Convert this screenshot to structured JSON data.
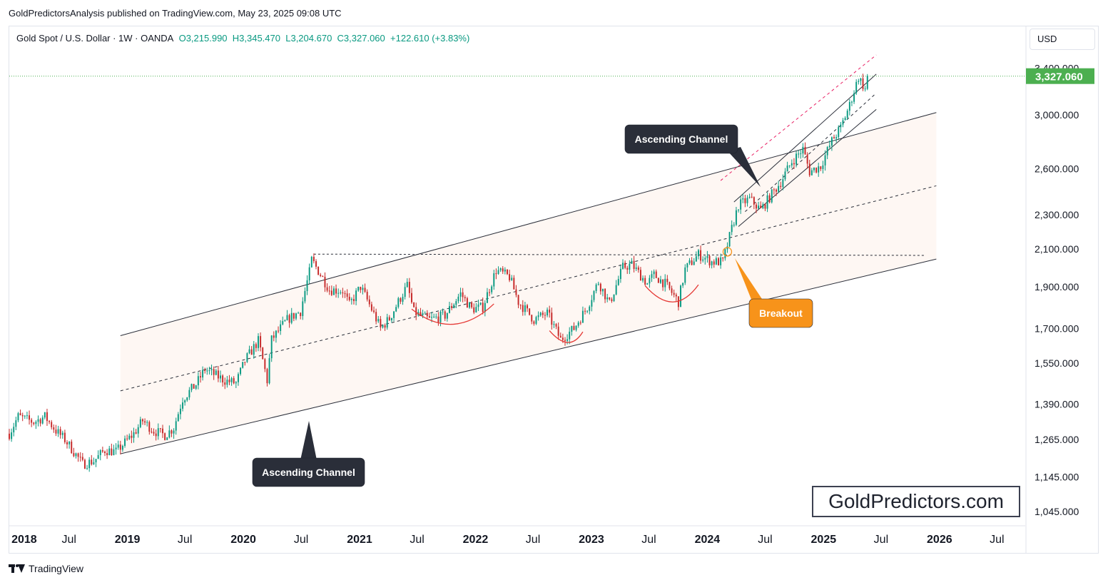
{
  "header": {
    "publisher": "GoldPredictorsAnalysis published on TradingView.com, May 23, 2025 09:08 UTC"
  },
  "legend": {
    "symbol": "Gold Spot / U.S. Dollar · 1W · OANDA",
    "open": "O3,215.990",
    "high": "H3,345.470",
    "low": "L3,204.670",
    "close": "C3,327.060",
    "change": "+122.610 (+3.83%)"
  },
  "currency": "USD",
  "last_price_label": "3,327.060",
  "footer": {
    "brand": "TradingView"
  },
  "watermark": "GoldPredictors.com",
  "colors": {
    "up": "#089981",
    "down": "#c62828",
    "accent_green": "#4caf50",
    "label_dark": "#2a2e39",
    "label_orange": "#f7931a",
    "red_dash": "#e91e63",
    "channel_fill": "#fdf4ef"
  },
  "annotations": [
    {
      "id": "ascending-channel-large",
      "text": "Ascending Channel"
    },
    {
      "id": "ascending-channel-small",
      "text": "Ascending Channel"
    },
    {
      "id": "breakout",
      "text": "Breakout"
    }
  ],
  "chart_data": {
    "type": "candlestick",
    "title": "",
    "interval": "1W",
    "y_scale": "log",
    "ylim": [
      1000,
      3500
    ],
    "y_ticks": [
      {
        "value": 3400,
        "label": "3,400.000"
      },
      {
        "value": 3000,
        "label": "3,000.000"
      },
      {
        "value": 2600,
        "label": "2,600.000"
      },
      {
        "value": 2300,
        "label": "2,300.000"
      },
      {
        "value": 2100,
        "label": "2,100.000"
      },
      {
        "value": 1900,
        "label": "1,900.000"
      },
      {
        "value": 1700,
        "label": "1,700.000"
      },
      {
        "value": 1550,
        "label": "1,550.000"
      },
      {
        "value": 1390,
        "label": "1,390.000"
      },
      {
        "value": 1265,
        "label": "1,265.000"
      },
      {
        "value": 1145,
        "label": "1,145.000"
      },
      {
        "value": 1045,
        "label": "1,045.000"
      }
    ],
    "x_ticks": [
      {
        "date": "2018-01-01",
        "label": "2018",
        "bold": true
      },
      {
        "date": "2018-07-01",
        "label": "Jul",
        "bold": false
      },
      {
        "date": "2019-01-01",
        "label": "2019",
        "bold": true
      },
      {
        "date": "2019-07-01",
        "label": "Jul",
        "bold": false
      },
      {
        "date": "2020-01-01",
        "label": "2020",
        "bold": true
      },
      {
        "date": "2020-07-01",
        "label": "Jul",
        "bold": false
      },
      {
        "date": "2021-01-01",
        "label": "2021",
        "bold": true
      },
      {
        "date": "2021-07-01",
        "label": "Jul",
        "bold": false
      },
      {
        "date": "2022-01-01",
        "label": "2022",
        "bold": true
      },
      {
        "date": "2022-07-01",
        "label": "Jul",
        "bold": false
      },
      {
        "date": "2023-01-01",
        "label": "2023",
        "bold": true
      },
      {
        "date": "2023-07-01",
        "label": "Jul",
        "bold": false
      },
      {
        "date": "2024-01-01",
        "label": "2024",
        "bold": true
      },
      {
        "date": "2024-07-01",
        "label": "Jul",
        "bold": false
      },
      {
        "date": "2025-01-01",
        "label": "2025",
        "bold": true
      },
      {
        "date": "2025-07-01",
        "label": "Jul",
        "bold": false
      },
      {
        "date": "2026-01-01",
        "label": "2026",
        "bold": true
      },
      {
        "date": "2026-07-01",
        "label": "Jul",
        "bold": false
      }
    ],
    "xlim": [
      "2017-12-25",
      "2026-09-28"
    ],
    "price_path": [
      [
        "2017-12-25",
        1285
      ],
      [
        "2018-01-22",
        1345
      ],
      [
        "2018-03-12",
        1325
      ],
      [
        "2018-04-16",
        1345
      ],
      [
        "2018-05-21",
        1295
      ],
      [
        "2018-06-18",
        1265
      ],
      [
        "2018-08-13",
        1185
      ],
      [
        "2018-09-17",
        1195
      ],
      [
        "2018-10-22",
        1230
      ],
      [
        "2018-11-26",
        1225
      ],
      [
        "2019-01-21",
        1285
      ],
      [
        "2019-02-18",
        1330
      ],
      [
        "2019-03-25",
        1295
      ],
      [
        "2019-04-29",
        1280
      ],
      [
        "2019-05-27",
        1305
      ],
      [
        "2019-06-24",
        1410
      ],
      [
        "2019-08-05",
        1465
      ],
      [
        "2019-09-02",
        1525
      ],
      [
        "2019-09-30",
        1505
      ],
      [
        "2019-11-04",
        1480
      ],
      [
        "2019-12-09",
        1470
      ],
      [
        "2020-01-06",
        1560
      ],
      [
        "2020-02-17",
        1645
      ],
      [
        "2020-03-16",
        1480
      ],
      [
        "2020-03-30",
        1650
      ],
      [
        "2020-05-18",
        1740
      ],
      [
        "2020-06-29",
        1780
      ],
      [
        "2020-07-27",
        1975
      ],
      [
        "2020-08-03",
        2040
      ],
      [
        "2020-09-28",
        1885
      ],
      [
        "2020-11-09",
        1880
      ],
      [
        "2020-11-30",
        1810
      ],
      [
        "2021-01-04",
        1900
      ],
      [
        "2021-03-08",
        1700
      ],
      [
        "2021-04-05",
        1745
      ],
      [
        "2021-05-31",
        1905
      ],
      [
        "2021-06-21",
        1775
      ],
      [
        "2021-08-09",
        1740
      ],
      [
        "2021-09-27",
        1760
      ],
      [
        "2021-11-15",
        1865
      ],
      [
        "2021-12-20",
        1790
      ],
      [
        "2022-01-24",
        1800
      ],
      [
        "2022-03-07",
        1985
      ],
      [
        "2022-04-18",
        1950
      ],
      [
        "2022-05-16",
        1825
      ],
      [
        "2022-07-04",
        1740
      ],
      [
        "2022-08-15",
        1770
      ],
      [
        "2022-09-26",
        1650
      ],
      [
        "2022-11-07",
        1700
      ],
      [
        "2022-12-19",
        1800
      ],
      [
        "2023-01-23",
        1925
      ],
      [
        "2023-02-27",
        1815
      ],
      [
        "2023-04-10",
        2000
      ],
      [
        "2023-05-08",
        2015
      ],
      [
        "2023-06-26",
        1915
      ],
      [
        "2023-07-17",
        1960
      ],
      [
        "2023-08-21",
        1915
      ],
      [
        "2023-10-02",
        1825
      ],
      [
        "2023-10-23",
        1990
      ],
      [
        "2023-12-04",
        2070
      ],
      [
        "2024-01-15",
        2030
      ],
      [
        "2024-02-19",
        2030
      ],
      [
        "2024-03-11",
        2170
      ],
      [
        "2024-04-08",
        2360
      ],
      [
        "2024-05-13",
        2400
      ],
      [
        "2024-06-17",
        2330
      ],
      [
        "2024-07-15",
        2410
      ],
      [
        "2024-08-19",
        2510
      ],
      [
        "2024-09-23",
        2650
      ],
      [
        "2024-10-28",
        2740
      ],
      [
        "2024-11-18",
        2580
      ],
      [
        "2024-12-23",
        2620
      ],
      [
        "2025-01-27",
        2800
      ],
      [
        "2025-02-24",
        2900
      ],
      [
        "2025-03-24",
        3080
      ],
      [
        "2025-04-21",
        3320
      ],
      [
        "2025-05-12",
        3210
      ],
      [
        "2025-05-19",
        3327.06
      ]
    ],
    "last_candle": {
      "open": 3215.99,
      "high": 3345.47,
      "low": 3204.67,
      "close": 3327.06
    },
    "last_price": 3327.06,
    "grid": false,
    "legend": "top-left"
  }
}
